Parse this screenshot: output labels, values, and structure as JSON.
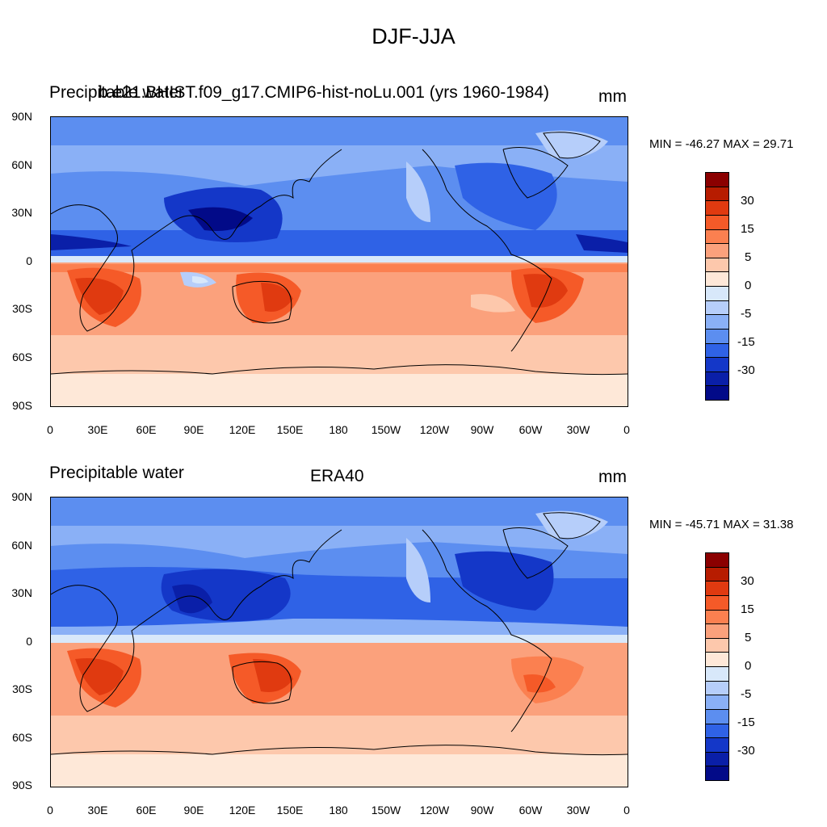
{
  "figure_title": "DJF-JJA",
  "panels": [
    {
      "left_label": "Precipitable water",
      "center_label": "b.e21.BHIST.f09_g17.CMIP6-hist-noLu.001 (yrs 1960-1984)",
      "units": "mm",
      "min_max": "MIN = -46.27 MAX =  29.71"
    },
    {
      "left_label": "Precipitable water",
      "center_label": "ERA40",
      "units": "mm",
      "min_max": "MIN = -45.71 MAX =  31.38"
    }
  ],
  "axes": {
    "y_ticks": [
      "90N",
      "60N",
      "30N",
      "0",
      "30S",
      "60S",
      "90S"
    ],
    "x_ticks": [
      "0",
      "30E",
      "60E",
      "90E",
      "120E",
      "150E",
      "180",
      "150W",
      "120W",
      "90W",
      "60W",
      "30W",
      "0"
    ]
  },
  "colorbar": {
    "labels": [
      "30",
      "15",
      "5",
      "0",
      "-5",
      "-15",
      "-30"
    ],
    "colors": [
      "#8b0000",
      "#b71c00",
      "#e03a10",
      "#f55a28",
      "#fb8050",
      "#fba17c",
      "#fdc8ac",
      "#fee8d8",
      "#d8e8fa",
      "#b6cefa",
      "#8ab0f6",
      "#5c8ef0",
      "#2f62e6",
      "#1437c8",
      "#0a1fa8",
      "#020a88"
    ]
  },
  "chart_data": [
    {
      "type": "heatmap",
      "title": "DJF-JJA",
      "subtitle": "b.e21.BHIST.f09_g17.CMIP6-hist-noLu.001 (yrs 1960-1984)",
      "variable": "Precipitable water",
      "units": "mm",
      "xlim": [
        0,
        360
      ],
      "ylim": [
        -90,
        90
      ],
      "levels": [
        -35,
        -30,
        -25,
        -20,
        -15,
        -10,
        -5,
        -2,
        0,
        2,
        5,
        10,
        15,
        20,
        25,
        30,
        35
      ],
      "min": -46.27,
      "max": 29.71
    },
    {
      "type": "heatmap",
      "title": "DJF-JJA",
      "subtitle": "ERA40",
      "variable": "Precipitable water",
      "units": "mm",
      "xlim": [
        0,
        360
      ],
      "ylim": [
        -90,
        90
      ],
      "levels": [
        -35,
        -30,
        -25,
        -20,
        -15,
        -10,
        -5,
        -2,
        0,
        2,
        5,
        10,
        15,
        20,
        25,
        30,
        35
      ],
      "min": -45.71,
      "max": 31.38
    }
  ]
}
